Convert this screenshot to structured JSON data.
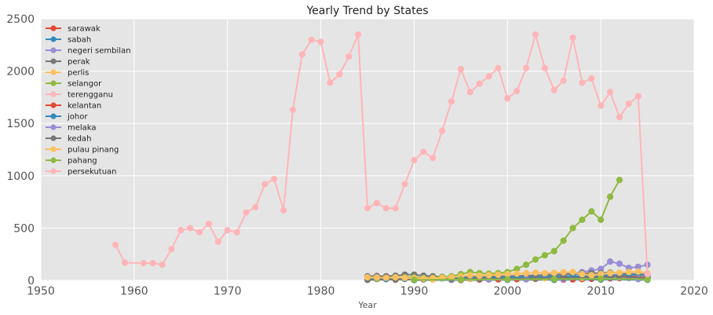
{
  "chart_data": {
    "type": "line",
    "title": "Yearly Trend by States",
    "xlabel": "Year",
    "ylabel": "",
    "xlim": [
      1950,
      2020
    ],
    "ylim": [
      0,
      2500
    ],
    "xticks": [
      1950,
      1960,
      1970,
      1980,
      1990,
      2000,
      2010,
      2020
    ],
    "yticks": [
      0,
      500,
      1000,
      1500,
      2000,
      2500
    ],
    "grid": true,
    "legend_position": "upper-left",
    "series": [
      {
        "name": "sarawak",
        "color": "#E24A33",
        "x": [
          2005,
          2006,
          2007,
          2008,
          2009,
          2010,
          2011,
          2012,
          2013,
          2014,
          2015
        ],
        "y": [
          5,
          8,
          10,
          12,
          15,
          18,
          20,
          22,
          25,
          20,
          15
        ]
      },
      {
        "name": "sabah",
        "color": "#348ABD",
        "x": [
          1990,
          1995,
          2000,
          2005,
          2010,
          2015
        ],
        "y": [
          2,
          3,
          5,
          6,
          8,
          5
        ]
      },
      {
        "name": "negeri sembilan",
        "color": "#988ED5",
        "x": [
          1985,
          1986,
          1987,
          1988,
          1989,
          1990,
          1991,
          1992,
          1993,
          1994,
          1995,
          1996,
          1997,
          1998,
          1999,
          2000,
          2001,
          2002,
          2003,
          2004,
          2005,
          2006,
          2007,
          2008,
          2009,
          2010,
          2011,
          2012,
          2013,
          2014,
          2015
        ],
        "y": [
          10,
          12,
          15,
          18,
          20,
          20,
          22,
          25,
          25,
          28,
          30,
          32,
          35,
          38,
          40,
          42,
          45,
          48,
          50,
          55,
          60,
          65,
          70,
          80,
          95,
          110,
          180,
          160,
          120,
          130,
          150
        ]
      },
      {
        "name": "perak",
        "color": "#777777",
        "x": [
          1985,
          1986,
          1987,
          1988,
          1989,
          1990,
          1991,
          1992,
          1993,
          1994,
          1995,
          1996,
          1997,
          1998,
          1999,
          2000,
          2001,
          2002,
          2003,
          2004,
          2005,
          2006,
          2007,
          2008,
          2009,
          2010,
          2011,
          2012,
          2013,
          2014,
          2015
        ],
        "y": [
          40,
          42,
          40,
          45,
          55,
          55,
          45,
          40,
          35,
          38,
          35,
          40,
          38,
          36,
          35,
          38,
          40,
          42,
          45,
          48,
          50,
          55,
          60,
          65,
          70,
          70,
          75,
          70,
          65,
          60,
          55
        ]
      },
      {
        "name": "perlis",
        "color": "#FBC15E",
        "x": [
          1988,
          1990,
          1992,
          1994,
          1996,
          1998,
          2000,
          2002,
          2004,
          2006,
          2008,
          2010,
          2012,
          2014
        ],
        "y": [
          5,
          6,
          8,
          10,
          12,
          14,
          15,
          18,
          20,
          22,
          25,
          28,
          30,
          28
        ]
      },
      {
        "name": "selangor",
        "color": "#8EBA42",
        "x": [
          1985,
          1986,
          1987,
          1988,
          1989,
          1990,
          1991,
          1992,
          1993,
          1994,
          1995,
          1996,
          1997,
          1998,
          1999,
          2000,
          2001,
          2002,
          2003,
          2004,
          2005,
          2006,
          2007,
          2008,
          2009,
          2010,
          2011,
          2012
        ],
        "y": [
          20,
          15,
          20,
          25,
          30,
          30,
          25,
          25,
          35,
          40,
          60,
          80,
          70,
          65,
          70,
          80,
          110,
          150,
          200,
          240,
          280,
          380,
          500,
          580,
          660,
          580,
          800,
          960
        ]
      },
      {
        "name": "terengganu",
        "color": "#FFB5B8",
        "x": [
          1990,
          1995,
          2000,
          2005,
          2010,
          2015
        ],
        "y": [
          5,
          8,
          10,
          12,
          15,
          10
        ]
      },
      {
        "name": "kelantan",
        "color": "#E24A33",
        "x": [
          1995,
          1997,
          1999,
          2001,
          2003,
          2005,
          2007,
          2009,
          2011,
          2013,
          2015
        ],
        "y": [
          5,
          8,
          10,
          12,
          15,
          18,
          25,
          30,
          35,
          40,
          30
        ]
      },
      {
        "name": "johor",
        "color": "#348ABD",
        "x": [
          1985,
          1987,
          1989,
          1991,
          1993,
          1995,
          1997,
          1999,
          2001,
          2003,
          2005,
          2007,
          2009,
          2011,
          2013,
          2015
        ],
        "y": [
          10,
          12,
          15,
          18,
          20,
          22,
          25,
          28,
          30,
          32,
          35,
          40,
          45,
          50,
          55,
          50
        ]
      },
      {
        "name": "melaka",
        "color": "#988ED5",
        "x": [
          1990,
          1994,
          1998,
          2002,
          2006,
          2010,
          2014
        ],
        "y": [
          3,
          5,
          8,
          10,
          12,
          15,
          12
        ]
      },
      {
        "name": "kedah",
        "color": "#777777",
        "x": [
          1985,
          1988,
          1991,
          1994,
          1997,
          2000,
          2003,
          2006,
          2009,
          2012,
          2015
        ],
        "y": [
          5,
          8,
          10,
          12,
          15,
          18,
          20,
          25,
          30,
          35,
          25
        ]
      },
      {
        "name": "pulau pinang",
        "color": "#FBC15E",
        "x": [
          1985,
          1986,
          1987,
          1988,
          1989,
          1990,
          1991,
          1992,
          1993,
          1994,
          1995,
          1996,
          1997,
          1998,
          1999,
          2000,
          2001,
          2002,
          2003,
          2004,
          2005,
          2006,
          2007,
          2008,
          2009,
          2010,
          2011,
          2012,
          2013,
          2014,
          2015
        ],
        "y": [
          30,
          28,
          25,
          30,
          25,
          20,
          18,
          20,
          25,
          30,
          40,
          50,
          45,
          50,
          55,
          60,
          65,
          70,
          75,
          70,
          72,
          78,
          80,
          60,
          50,
          60,
          70,
          75,
          80,
          85,
          70
        ]
      },
      {
        "name": "pahang",
        "color": "#8EBA42",
        "x": [
          1990,
          1995,
          2000,
          2005,
          2010,
          2015
        ],
        "y": [
          5,
          8,
          10,
          12,
          15,
          10
        ]
      },
      {
        "name": "persekutuan",
        "color": "#FFB5B8",
        "x": [
          1958,
          1959,
          1961,
          1962,
          1963,
          1964,
          1965,
          1966,
          1967,
          1968,
          1969,
          1970,
          1971,
          1972,
          1973,
          1974,
          1975,
          1976,
          1977,
          1978,
          1979,
          1980,
          1981,
          1982,
          1983,
          1984,
          1985,
          1986,
          1987,
          1988,
          1989,
          1990,
          1991,
          1992,
          1993,
          1994,
          1995,
          1996,
          1997,
          1998,
          1999,
          2000,
          2001,
          2002,
          2003,
          2004,
          2005,
          2006,
          2007,
          2008,
          2009,
          2010,
          2011,
          2012,
          2013,
          2014,
          2015
        ],
        "y": [
          340,
          170,
          165,
          165,
          150,
          300,
          480,
          500,
          460,
          540,
          370,
          480,
          460,
          650,
          700,
          920,
          970,
          670,
          1630,
          2160,
          2300,
          2280,
          1890,
          1970,
          2140,
          2350,
          690,
          740,
          690,
          690,
          920,
          1150,
          1230,
          1170,
          1430,
          1710,
          2020,
          1800,
          1880,
          1950,
          2030,
          1740,
          1810,
          2030,
          2350,
          2030,
          1820,
          1910,
          2320,
          1890,
          1930,
          1670,
          1800,
          1560,
          1690,
          1760,
          60
        ]
      }
    ]
  }
}
